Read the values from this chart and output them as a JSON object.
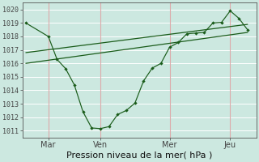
{
  "xlabel": "Pression niveau de la mer( hPa )",
  "ylim": [
    1010.5,
    1020.5
  ],
  "xlim": [
    0,
    13.5
  ],
  "yticks": [
    1011,
    1012,
    1013,
    1014,
    1015,
    1016,
    1017,
    1018,
    1019,
    1020
  ],
  "xtick_labels": [
    "Mar",
    "Ven",
    "Mer",
    "Jeu"
  ],
  "xtick_positions": [
    1.5,
    4.5,
    8.5,
    12.0
  ],
  "background_color": "#cce8e0",
  "grid_color": "#ffffff",
  "line_color": "#1a5c1a",
  "series1_x": [
    0.2,
    1.5,
    2.0,
    2.5,
    3.0,
    3.5,
    4.0,
    4.5,
    5.0,
    5.5,
    6.0,
    6.5,
    7.0,
    7.5,
    8.0,
    8.5,
    9.0,
    9.5,
    10.0,
    10.5,
    11.0,
    11.5,
    12.0,
    12.5,
    13.0
  ],
  "series1_y": [
    1019.0,
    1018.0,
    1016.3,
    1015.6,
    1014.4,
    1012.4,
    1011.2,
    1011.15,
    1011.3,
    1012.2,
    1012.5,
    1013.05,
    1014.7,
    1015.65,
    1016.0,
    1017.2,
    1017.55,
    1018.2,
    1018.25,
    1018.3,
    1019.0,
    1019.05,
    1019.9,
    1019.35,
    1018.5
  ],
  "series2_x": [
    0.2,
    13.0
  ],
  "series2_y": [
    1016.0,
    1018.3
  ],
  "series3_x": [
    0.2,
    13.0
  ],
  "series3_y": [
    1016.8,
    1018.9
  ],
  "vline_x": [
    1.5,
    4.5,
    8.5,
    12.0
  ],
  "vline_color": "#ddaaaa",
  "total_x": 13.5
}
